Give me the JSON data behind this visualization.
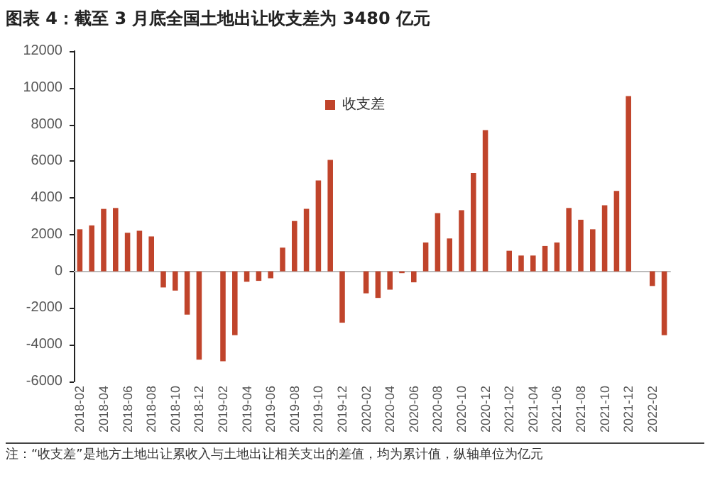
{
  "chart_data": {
    "type": "bar",
    "title": "图表 4：截至 3 月底全国土地出让收支差为 3480 亿元",
    "categories": [
      "2018-02",
      null,
      "2018-04",
      null,
      "2018-06",
      null,
      "2018-08",
      null,
      "2018-10",
      null,
      "2018-12",
      null,
      "2019-02",
      null,
      "2019-04",
      null,
      "2019-06",
      null,
      "2019-08",
      null,
      "2019-10",
      null,
      "2019-12",
      null,
      "2020-02",
      null,
      "2020-04",
      null,
      "2020-06",
      null,
      "2020-08",
      null,
      "2020-10",
      null,
      "2020-12",
      null,
      "2021-02",
      null,
      "2021-04",
      null,
      "2021-06",
      null,
      "2021-08",
      null,
      "2021-10",
      null,
      "2021-12",
      null,
      "2022-02",
      null
    ],
    "series": [
      {
        "name": "收支差",
        "color": "#c0442b",
        "values": [
          2290,
          2500,
          3400,
          3450,
          2100,
          2210,
          1900,
          -880,
          -1050,
          -2360,
          -4810,
          null,
          -4900,
          -3480,
          -570,
          -520,
          -380,
          1290,
          2740,
          3400,
          4950,
          6070,
          -2800,
          null,
          -1200,
          -1450,
          -1000,
          -100,
          -600,
          1570,
          3170,
          1790,
          3330,
          5360,
          7690,
          null,
          1120,
          860,
          860,
          1380,
          1570,
          3450,
          2810,
          2290,
          3600,
          4380,
          9550,
          null,
          -800,
          -3480
        ]
      }
    ],
    "ylim": [
      -6000,
      12000
    ],
    "yticks": [
      -6000,
      -4000,
      -2000,
      0,
      2000,
      4000,
      6000,
      8000,
      10000,
      12000
    ],
    "legend": "top",
    "annotations": [
      "注：“收支差”是地方土地出让累收入与土地出让相关支出的差值，均为累计值，纵轴单位为亿元"
    ]
  }
}
